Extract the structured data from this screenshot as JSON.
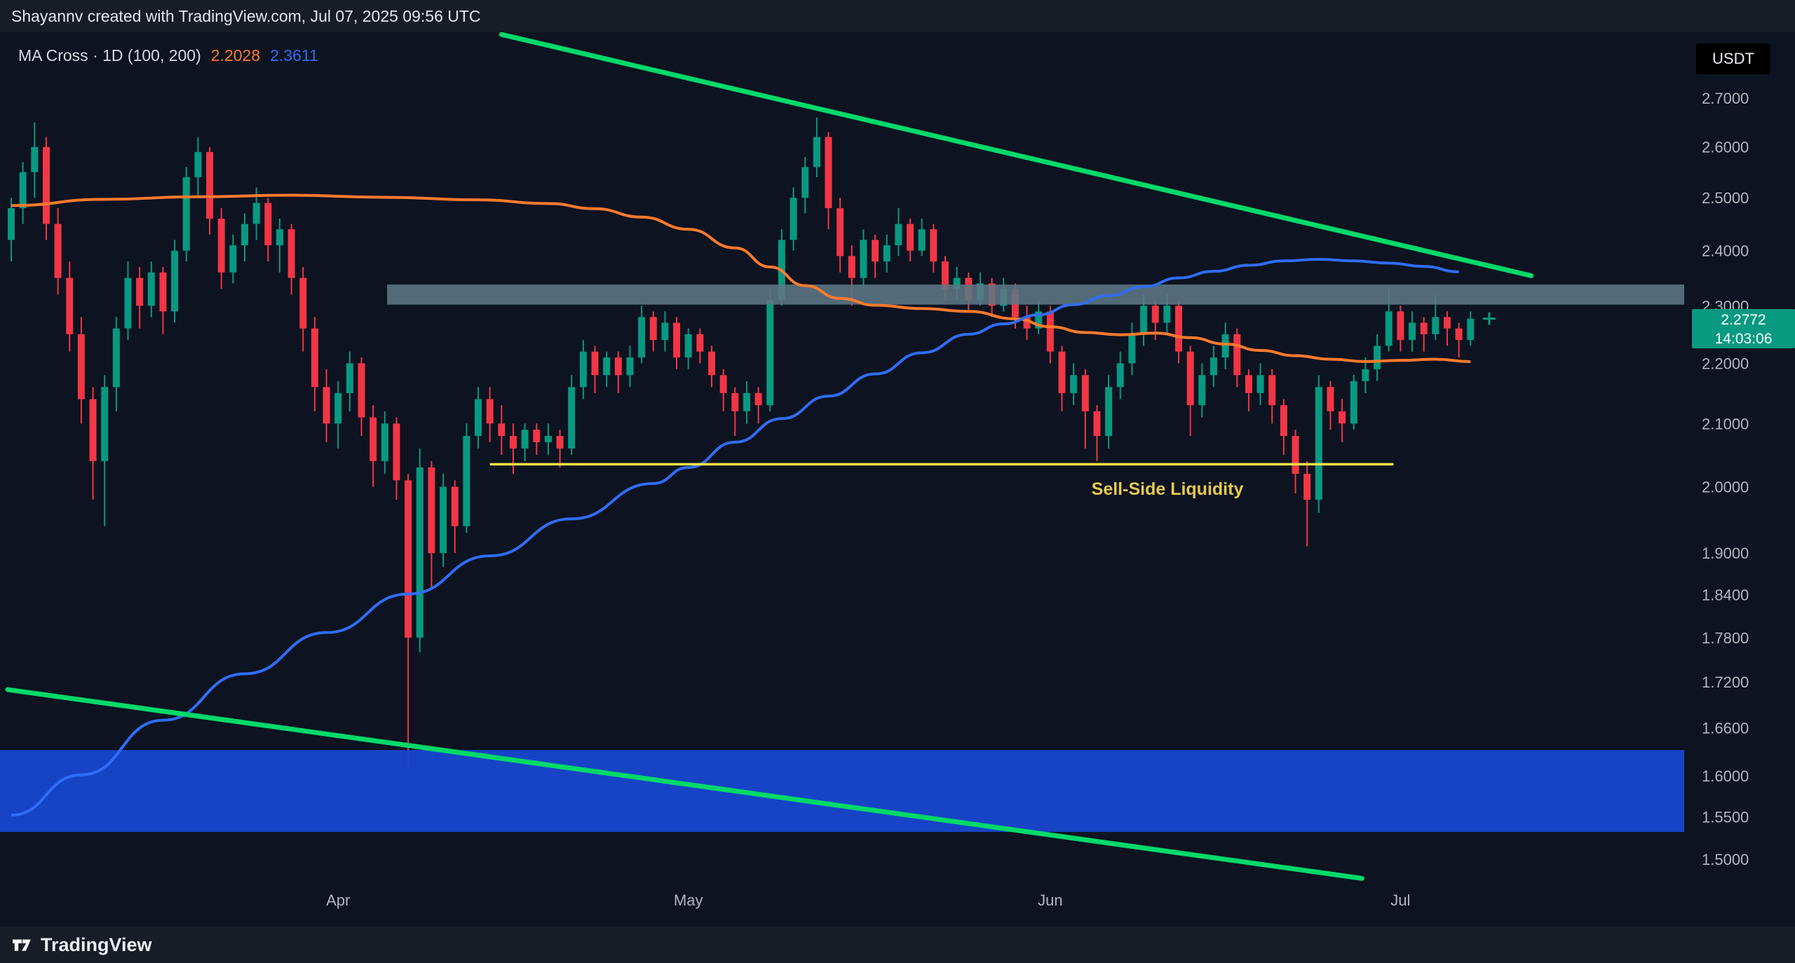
{
  "attribution": "Shayannv created with TradingView.com, Jul 07, 2025 09:56 UTC",
  "legend": {
    "text": "MA Cross · 1D (100, 200)",
    "ma100_value": "2.2028",
    "ma200_value": "2.3611"
  },
  "price_axis": {
    "currency": "USDT",
    "ticks": [
      "2.7000",
      "2.6000",
      "2.5000",
      "2.4000",
      "2.3000",
      "2.2000",
      "2.1000",
      "2.0000",
      "1.9000",
      "1.8400",
      "1.7800",
      "1.7200",
      "1.6600",
      "1.6000",
      "1.5500",
      "1.5000"
    ],
    "last_price_label": "2.2772",
    "countdown": "14:03:06"
  },
  "annotations": {
    "sell_side_label": "Sell-Side Liquidity"
  },
  "footer": {
    "brand": "TradingView"
  },
  "colors": {
    "background": "#0d1320",
    "panel": "#171c26",
    "text_primary": "#e3e6ee",
    "text_axis": "#b2b5be",
    "candle_up": "#089981",
    "candle_down": "#f23645",
    "ma100": "#ff7a2e",
    "ma200": "#2f6df5",
    "trendline": "#00d96a",
    "liquidity_line": "#f8e445",
    "liquidity_label": "#e6c94e",
    "resistance_zone": "#5d7684",
    "demand_zone": "#1846d0",
    "price_badge": "#089981",
    "usdt_badge_bg": "#000000"
  },
  "chart_data": {
    "type": "candlestick",
    "indicator": "MA Cross · 1D (100, 200)",
    "quote_currency": "USDT",
    "timeframe": "1D",
    "yscale": "log",
    "ylim": [
      1.478,
      2.84
    ],
    "price_ticks": [
      2.7,
      2.6,
      2.5,
      2.4,
      2.3,
      2.2,
      2.1,
      2.0,
      1.9,
      1.84,
      1.78,
      1.72,
      1.66,
      1.6,
      1.55,
      1.5
    ],
    "x_start_date": "2025-03-04",
    "x_end_date": "2025-07-07",
    "last_price": 2.2772,
    "month_labels": [
      {
        "label": "Apr",
        "index": 28
      },
      {
        "label": "May",
        "index": 58
      },
      {
        "label": "Jun",
        "index": 89
      },
      {
        "label": "Jul",
        "index": 119
      }
    ],
    "candles": [
      [
        2.42,
        2.5,
        2.38,
        2.48
      ],
      [
        2.48,
        2.57,
        2.45,
        2.55
      ],
      [
        2.55,
        2.65,
        2.5,
        2.6
      ],
      [
        2.6,
        2.62,
        2.42,
        2.45
      ],
      [
        2.45,
        2.48,
        2.32,
        2.35
      ],
      [
        2.35,
        2.38,
        2.22,
        2.25
      ],
      [
        2.25,
        2.28,
        2.1,
        2.14
      ],
      [
        2.14,
        2.16,
        1.98,
        2.04
      ],
      [
        2.04,
        2.18,
        1.94,
        2.16
      ],
      [
        2.16,
        2.28,
        2.12,
        2.26
      ],
      [
        2.26,
        2.38,
        2.24,
        2.35
      ],
      [
        2.35,
        2.37,
        2.26,
        2.3
      ],
      [
        2.3,
        2.38,
        2.28,
        2.36
      ],
      [
        2.36,
        2.37,
        2.25,
        2.29
      ],
      [
        2.29,
        2.42,
        2.27,
        2.4
      ],
      [
        2.4,
        2.56,
        2.38,
        2.54
      ],
      [
        2.54,
        2.62,
        2.5,
        2.59
      ],
      [
        2.59,
        2.6,
        2.43,
        2.46
      ],
      [
        2.46,
        2.48,
        2.33,
        2.36
      ],
      [
        2.36,
        2.43,
        2.34,
        2.41
      ],
      [
        2.41,
        2.47,
        2.38,
        2.45
      ],
      [
        2.45,
        2.52,
        2.42,
        2.49
      ],
      [
        2.49,
        2.5,
        2.38,
        2.41
      ],
      [
        2.41,
        2.46,
        2.36,
        2.44
      ],
      [
        2.44,
        2.45,
        2.32,
        2.35
      ],
      [
        2.35,
        2.37,
        2.22,
        2.26
      ],
      [
        2.26,
        2.28,
        2.12,
        2.16
      ],
      [
        2.16,
        2.19,
        2.07,
        2.1
      ],
      [
        2.1,
        2.17,
        2.06,
        2.15
      ],
      [
        2.15,
        2.22,
        2.12,
        2.2
      ],
      [
        2.2,
        2.21,
        2.08,
        2.11
      ],
      [
        2.11,
        2.13,
        2.0,
        2.04
      ],
      [
        2.04,
        2.12,
        2.02,
        2.1
      ],
      [
        2.1,
        2.11,
        1.98,
        2.01
      ],
      [
        2.01,
        2.02,
        1.61,
        1.78
      ],
      [
        1.78,
        2.06,
        1.76,
        2.03
      ],
      [
        2.03,
        2.04,
        1.85,
        1.9
      ],
      [
        1.9,
        2.02,
        1.88,
        2.0
      ],
      [
        2.0,
        2.01,
        1.9,
        1.94
      ],
      [
        1.94,
        2.1,
        1.93,
        2.08
      ],
      [
        2.08,
        2.16,
        2.06,
        2.14
      ],
      [
        2.14,
        2.16,
        2.07,
        2.1
      ],
      [
        2.1,
        2.13,
        2.05,
        2.08
      ],
      [
        2.08,
        2.1,
        2.02,
        2.06
      ],
      [
        2.06,
        2.1,
        2.04,
        2.09
      ],
      [
        2.09,
        2.1,
        2.05,
        2.07
      ],
      [
        2.07,
        2.1,
        2.05,
        2.08
      ],
      [
        2.08,
        2.09,
        2.03,
        2.06
      ],
      [
        2.06,
        2.18,
        2.05,
        2.16
      ],
      [
        2.16,
        2.24,
        2.14,
        2.22
      ],
      [
        2.22,
        2.23,
        2.15,
        2.18
      ],
      [
        2.18,
        2.22,
        2.16,
        2.21
      ],
      [
        2.21,
        2.22,
        2.15,
        2.18
      ],
      [
        2.18,
        2.23,
        2.16,
        2.21
      ],
      [
        2.21,
        2.3,
        2.2,
        2.28
      ],
      [
        2.28,
        2.29,
        2.22,
        2.24
      ],
      [
        2.24,
        2.29,
        2.22,
        2.27
      ],
      [
        2.27,
        2.28,
        2.19,
        2.21
      ],
      [
        2.21,
        2.26,
        2.19,
        2.25
      ],
      [
        2.25,
        2.26,
        2.2,
        2.22
      ],
      [
        2.22,
        2.23,
        2.16,
        2.18
      ],
      [
        2.18,
        2.19,
        2.12,
        2.15
      ],
      [
        2.15,
        2.16,
        2.08,
        2.12
      ],
      [
        2.12,
        2.17,
        2.1,
        2.15
      ],
      [
        2.15,
        2.16,
        2.1,
        2.13
      ],
      [
        2.13,
        2.33,
        2.12,
        2.31
      ],
      [
        2.31,
        2.44,
        2.3,
        2.42
      ],
      [
        2.42,
        2.52,
        2.4,
        2.5
      ],
      [
        2.5,
        2.58,
        2.47,
        2.56
      ],
      [
        2.56,
        2.66,
        2.54,
        2.62
      ],
      [
        2.62,
        2.63,
        2.44,
        2.48
      ],
      [
        2.48,
        2.5,
        2.36,
        2.39
      ],
      [
        2.39,
        2.41,
        2.3,
        2.35
      ],
      [
        2.35,
        2.44,
        2.33,
        2.42
      ],
      [
        2.42,
        2.43,
        2.35,
        2.38
      ],
      [
        2.38,
        2.43,
        2.36,
        2.41
      ],
      [
        2.41,
        2.48,
        2.39,
        2.45
      ],
      [
        2.45,
        2.46,
        2.38,
        2.4
      ],
      [
        2.4,
        2.46,
        2.39,
        2.44
      ],
      [
        2.44,
        2.45,
        2.36,
        2.38
      ],
      [
        2.38,
        2.39,
        2.31,
        2.33
      ],
      [
        2.33,
        2.37,
        2.31,
        2.35
      ],
      [
        2.35,
        2.36,
        2.29,
        2.31
      ],
      [
        2.31,
        2.36,
        2.3,
        2.34
      ],
      [
        2.34,
        2.35,
        2.28,
        2.3
      ],
      [
        2.3,
        2.35,
        2.29,
        2.33
      ],
      [
        2.33,
        2.34,
        2.26,
        2.28
      ],
      [
        2.28,
        2.3,
        2.24,
        2.26
      ],
      [
        2.26,
        2.31,
        2.25,
        2.29
      ],
      [
        2.29,
        2.3,
        2.2,
        2.22
      ],
      [
        2.22,
        2.23,
        2.12,
        2.15
      ],
      [
        2.15,
        2.2,
        2.13,
        2.18
      ],
      [
        2.18,
        2.19,
        2.06,
        2.12
      ],
      [
        2.12,
        2.13,
        2.04,
        2.08
      ],
      [
        2.08,
        2.18,
        2.06,
        2.16
      ],
      [
        2.16,
        2.22,
        2.14,
        2.2
      ],
      [
        2.2,
        2.27,
        2.18,
        2.25
      ],
      [
        2.25,
        2.32,
        2.23,
        2.3
      ],
      [
        2.3,
        2.31,
        2.24,
        2.27
      ],
      [
        2.27,
        2.32,
        2.25,
        2.3
      ],
      [
        2.3,
        2.31,
        2.2,
        2.22
      ],
      [
        2.22,
        2.23,
        2.08,
        2.13
      ],
      [
        2.13,
        2.2,
        2.11,
        2.18
      ],
      [
        2.18,
        2.23,
        2.16,
        2.21
      ],
      [
        2.21,
        2.27,
        2.19,
        2.25
      ],
      [
        2.25,
        2.26,
        2.16,
        2.18
      ],
      [
        2.18,
        2.19,
        2.12,
        2.15
      ],
      [
        2.15,
        2.2,
        2.13,
        2.18
      ],
      [
        2.18,
        2.19,
        2.1,
        2.13
      ],
      [
        2.13,
        2.14,
        2.05,
        2.08
      ],
      [
        2.08,
        2.09,
        1.99,
        2.02
      ],
      [
        2.02,
        2.04,
        1.91,
        1.98
      ],
      [
        1.98,
        2.18,
        1.96,
        2.16
      ],
      [
        2.16,
        2.17,
        2.09,
        2.12
      ],
      [
        2.12,
        2.14,
        2.07,
        2.1
      ],
      [
        2.1,
        2.18,
        2.09,
        2.17
      ],
      [
        2.17,
        2.21,
        2.15,
        2.19
      ],
      [
        2.19,
        2.25,
        2.17,
        2.23
      ],
      [
        2.23,
        2.33,
        2.22,
        2.29
      ],
      [
        2.29,
        2.3,
        2.22,
        2.24
      ],
      [
        2.24,
        2.29,
        2.22,
        2.27
      ],
      [
        2.27,
        2.28,
        2.22,
        2.25
      ],
      [
        2.25,
        2.32,
        2.24,
        2.28
      ],
      [
        2.28,
        2.29,
        2.23,
        2.26
      ],
      [
        2.26,
        2.27,
        2.21,
        2.24
      ],
      [
        2.24,
        2.29,
        2.23,
        2.2772
      ]
    ],
    "series": [
      {
        "id": "ma100",
        "name": "MA 100",
        "color": "#ff7a2e",
        "last_value": 2.2028,
        "points": [
          [
            0,
            2.485
          ],
          [
            8,
            2.497
          ],
          [
            16,
            2.502
          ],
          [
            24,
            2.505
          ],
          [
            32,
            2.501
          ],
          [
            40,
            2.496
          ],
          [
            46,
            2.489
          ],
          [
            50,
            2.479
          ],
          [
            54,
            2.463
          ],
          [
            58,
            2.44
          ],
          [
            62,
            2.405
          ],
          [
            65,
            2.37
          ],
          [
            68,
            2.336
          ],
          [
            71,
            2.313
          ],
          [
            74,
            2.301
          ],
          [
            78,
            2.295
          ],
          [
            82,
            2.29
          ],
          [
            86,
            2.277
          ],
          [
            89,
            2.263
          ],
          [
            92,
            2.253
          ],
          [
            95,
            2.249
          ],
          [
            98,
            2.252
          ],
          [
            101,
            2.244
          ],
          [
            104,
            2.233
          ],
          [
            107,
            2.222
          ],
          [
            110,
            2.213
          ],
          [
            113,
            2.207
          ],
          [
            116,
            2.203
          ],
          [
            119,
            2.205
          ],
          [
            122,
            2.207
          ],
          [
            125,
            2.2028
          ]
        ]
      },
      {
        "id": "ma200",
        "name": "MA 200",
        "color": "#2f6df5",
        "last_value": 2.3611,
        "points": [
          [
            0,
            1.552
          ],
          [
            6,
            1.601
          ],
          [
            13,
            1.67
          ],
          [
            20,
            1.731
          ],
          [
            27,
            1.787
          ],
          [
            34,
            1.841
          ],
          [
            41,
            1.896
          ],
          [
            48,
            1.951
          ],
          [
            55,
            2.005
          ],
          [
            58,
            2.03
          ],
          [
            62,
            2.07
          ],
          [
            66,
            2.108
          ],
          [
            70,
            2.145
          ],
          [
            74,
            2.182
          ],
          [
            78,
            2.218
          ],
          [
            82,
            2.25
          ],
          [
            85,
            2.268
          ],
          [
            88,
            2.284
          ],
          [
            91,
            2.302
          ],
          [
            94,
            2.318
          ],
          [
            97,
            2.334
          ],
          [
            100,
            2.35
          ],
          [
            103,
            2.362
          ],
          [
            106,
            2.373
          ],
          [
            109,
            2.381
          ],
          [
            112,
            2.384
          ],
          [
            115,
            2.381
          ],
          [
            118,
            2.377
          ],
          [
            121,
            2.371
          ],
          [
            124,
            2.3611
          ]
        ]
      }
    ],
    "drawings": {
      "resistance_zone": {
        "type": "rect",
        "price_top": 2.338,
        "price_bottom": 2.302,
        "x_start_index": 32.2,
        "extends_right": true
      },
      "demand_zone": {
        "type": "rect",
        "price_top": 1.632,
        "price_bottom": 1.532,
        "x_start_index": 0,
        "extends_right": true
      },
      "liquidity_line": {
        "type": "hline_segment",
        "price": 2.035,
        "x_start_index": 41,
        "x_end_index": 118.4,
        "label": "Sell-Side Liquidity"
      },
      "trendline_upper": {
        "type": "trendline",
        "points": [
          [
            42,
            2.836
          ],
          [
            130.2,
            2.354
          ]
        ]
      },
      "trendline_lower": {
        "type": "trendline",
        "points": [
          [
            -0.3,
            1.71
          ],
          [
            115.7,
            1.478
          ]
        ]
      }
    }
  }
}
